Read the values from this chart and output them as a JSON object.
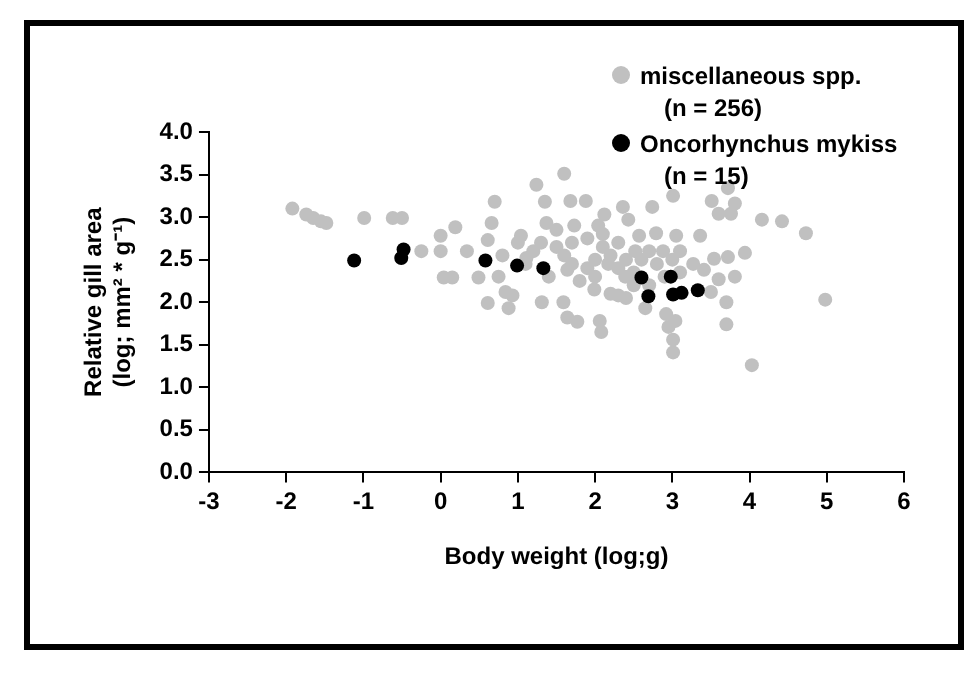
{
  "chart_data": {
    "type": "scatter",
    "xlabel": "Body weight (log;g)",
    "ylabel": "Relative gill area\n(log; mm² * g⁻¹)",
    "xlim": [
      -3,
      6
    ],
    "xticks": [
      -3,
      -2,
      -1,
      0,
      1,
      2,
      3,
      4,
      5,
      6
    ],
    "ylim": [
      0,
      4
    ],
    "yticks": [
      {
        "value": 0,
        "label": "0.0"
      },
      {
        "value": 0.5,
        "label": "0.5"
      },
      {
        "value": 1,
        "label": "1.0"
      },
      {
        "value": 1.5,
        "label": "1.5"
      },
      {
        "value": 2,
        "label": "2.0"
      },
      {
        "value": 2.5,
        "label": "2.5"
      },
      {
        "value": 3,
        "label": "3.0"
      },
      {
        "value": 3.5,
        "label": "3.5"
      },
      {
        "value": 4,
        "label": "4.0"
      }
    ],
    "grid": false,
    "legend": "top right",
    "marker": "circle",
    "series": [
      {
        "name": "miscellaneous spp.\n(n = 256)",
        "color": "#c0c0c0",
        "x": [
          -1.92,
          -1.74,
          -1.65,
          -1.55,
          -1.48,
          -0.99,
          -0.62,
          -0.5,
          -0.25,
          0.0,
          0.0,
          0.19,
          0.04,
          0.15,
          0.34,
          0.49,
          0.61,
          0.66,
          0.7,
          0.61,
          0.75,
          0.84,
          0.88,
          0.93,
          1.04,
          1.11,
          1.24,
          1.31,
          1.35,
          1.37,
          1.6,
          1.64,
          1.59,
          1.68,
          1.73,
          1.64,
          1.77,
          1.88,
          1.99,
          2.04,
          2.06,
          2.08,
          2.12,
          2.17,
          2.3,
          2.36,
          2.39,
          2.43,
          2.52,
          2.57,
          2.74,
          2.65,
          2.79,
          2.88,
          2.92,
          2.95,
          3.01,
          3.01,
          3.01,
          3.05,
          3.1,
          3.04,
          3.27,
          3.36,
          3.41,
          3.5,
          3.51,
          3.54,
          3.6,
          3.6,
          3.7,
          3.7,
          3.72,
          3.72,
          3.76,
          3.81,
          3.81,
          3.94,
          4.03,
          4.16,
          4.42,
          4.73,
          4.98,
          1.2,
          1.3,
          1.5,
          1.6,
          1.7,
          1.9,
          2.0,
          2.1,
          2.2,
          2.3,
          2.4,
          2.5,
          2.6,
          2.7,
          2.8,
          2.9,
          3.0,
          3.1,
          1.5,
          1.7,
          1.9,
          2.1,
          2.3,
          2.5,
          2.7,
          1.4,
          1.8,
          2.0,
          2.2,
          2.4,
          1.1,
          1.0,
          0.8
        ],
        "values": [
          3.1,
          3.03,
          2.99,
          2.95,
          2.93,
          2.99,
          2.99,
          2.99,
          2.6,
          2.78,
          2.6,
          2.88,
          2.29,
          2.29,
          2.6,
          2.29,
          2.73,
          2.93,
          3.18,
          1.99,
          2.3,
          2.12,
          1.93,
          2.08,
          2.78,
          2.52,
          3.38,
          2.0,
          3.18,
          2.93,
          3.51,
          2.38,
          2.0,
          3.19,
          2.9,
          1.82,
          1.77,
          3.19,
          2.15,
          2.9,
          1.78,
          1.65,
          3.03,
          2.45,
          2.08,
          3.12,
          2.3,
          2.97,
          2.6,
          2.78,
          3.12,
          1.93,
          2.81,
          2.6,
          1.86,
          1.71,
          3.25,
          1.56,
          1.41,
          2.78,
          2.6,
          1.78,
          2.45,
          2.78,
          2.38,
          2.12,
          3.19,
          2.51,
          3.04,
          2.27,
          2.0,
          1.74,
          3.34,
          2.53,
          3.04,
          3.16,
          2.3,
          2.58,
          1.26,
          2.97,
          2.95,
          2.81,
          2.03,
          2.6,
          2.7,
          2.65,
          2.55,
          2.7,
          2.75,
          2.5,
          2.65,
          2.55,
          2.4,
          2.5,
          2.35,
          2.5,
          2.6,
          2.45,
          2.3,
          2.5,
          2.35,
          2.85,
          2.45,
          2.4,
          2.8,
          2.7,
          2.2,
          2.2,
          2.3,
          2.25,
          2.3,
          2.1,
          2.05,
          2.45,
          2.7,
          2.55
        ]
      },
      {
        "name": "Oncorhynchus mykiss\n(n = 15)",
        "color": "#000000",
        "x": [
          -1.12,
          -0.51,
          -0.48,
          0.58,
          0.99,
          1.33,
          2.6,
          2.69,
          2.98,
          3.01,
          3.12,
          3.33
        ],
        "values": [
          2.49,
          2.52,
          2.62,
          2.49,
          2.43,
          2.4,
          2.29,
          2.07,
          2.3,
          2.09,
          2.11,
          2.14
        ]
      }
    ]
  }
}
